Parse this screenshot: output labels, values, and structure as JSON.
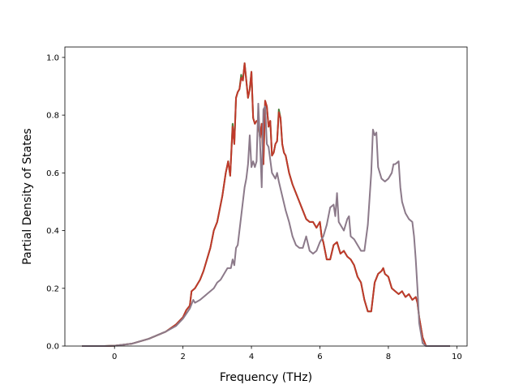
{
  "chart_data": {
    "type": "line",
    "title": "",
    "xlabel": "Frequency (THz)",
    "ylabel": "Partial Density of States",
    "xlim": [
      -1.45,
      10.3
    ],
    "ylim": [
      0.0,
      1.0361
    ],
    "xticks": [
      0,
      2,
      4,
      6,
      8,
      10
    ],
    "yticks": [
      0.0,
      0.2,
      0.4,
      0.6,
      0.8,
      1.0
    ],
    "xtick_labels": [
      "0",
      "2",
      "4",
      "6",
      "8",
      "10"
    ],
    "ytick_labels": [
      "0.0",
      "0.2",
      "0.4",
      "0.6",
      "0.8",
      "1.0"
    ],
    "grid": false,
    "legend": false,
    "series": [
      {
        "color": "#4a7f3a",
        "points": [
          [
            -0.95,
            0
          ],
          [
            -0.3,
            0
          ],
          [
            0,
            0.001
          ],
          [
            0.5,
            0.008
          ],
          [
            1.0,
            0.025
          ],
          [
            1.5,
            0.05
          ],
          [
            1.8,
            0.075
          ],
          [
            2.0,
            0.1
          ],
          [
            2.1,
            0.125
          ],
          [
            2.2,
            0.14
          ],
          [
            2.25,
            0.19
          ],
          [
            2.35,
            0.2
          ],
          [
            2.5,
            0.23
          ],
          [
            2.6,
            0.26
          ],
          [
            2.8,
            0.34
          ],
          [
            2.9,
            0.4
          ],
          [
            3.0,
            0.43
          ],
          [
            3.05,
            0.46
          ],
          [
            3.15,
            0.52
          ],
          [
            3.25,
            0.6
          ],
          [
            3.32,
            0.64
          ],
          [
            3.38,
            0.59
          ],
          [
            3.45,
            0.77
          ],
          [
            3.5,
            0.7
          ],
          [
            3.55,
            0.86
          ],
          [
            3.6,
            0.88
          ],
          [
            3.65,
            0.89
          ],
          [
            3.7,
            0.94
          ],
          [
            3.75,
            0.92
          ],
          [
            3.8,
            0.98
          ],
          [
            3.85,
            0.92
          ],
          [
            3.9,
            0.86
          ],
          [
            3.95,
            0.89
          ],
          [
            4.0,
            0.95
          ],
          [
            4.05,
            0.79
          ],
          [
            4.1,
            0.77
          ],
          [
            4.15,
            0.78
          ],
          [
            4.2,
            0.78
          ],
          [
            4.25,
            0.72
          ],
          [
            4.3,
            0.77
          ],
          [
            4.35,
            0.63
          ],
          [
            4.4,
            0.85
          ],
          [
            4.45,
            0.83
          ],
          [
            4.5,
            0.76
          ],
          [
            4.55,
            0.78
          ],
          [
            4.6,
            0.66
          ],
          [
            4.65,
            0.67
          ],
          [
            4.7,
            0.7
          ],
          [
            4.75,
            0.71
          ],
          [
            4.8,
            0.82
          ],
          [
            4.85,
            0.79
          ],
          [
            4.9,
            0.7
          ],
          [
            4.95,
            0.67
          ],
          [
            5.0,
            0.66
          ],
          [
            5.1,
            0.6
          ],
          [
            5.2,
            0.56
          ],
          [
            5.3,
            0.53
          ],
          [
            5.4,
            0.5
          ],
          [
            5.5,
            0.47
          ],
          [
            5.6,
            0.44
          ],
          [
            5.7,
            0.43
          ],
          [
            5.8,
            0.43
          ],
          [
            5.9,
            0.41
          ],
          [
            6.0,
            0.43
          ],
          [
            6.05,
            0.38
          ],
          [
            6.1,
            0.36
          ],
          [
            6.2,
            0.3
          ],
          [
            6.3,
            0.3
          ],
          [
            6.4,
            0.35
          ],
          [
            6.5,
            0.36
          ],
          [
            6.6,
            0.32
          ],
          [
            6.7,
            0.33
          ],
          [
            6.8,
            0.31
          ],
          [
            6.9,
            0.3
          ],
          [
            7.0,
            0.28
          ],
          [
            7.1,
            0.24
          ],
          [
            7.2,
            0.22
          ],
          [
            7.3,
            0.16
          ],
          [
            7.4,
            0.12
          ],
          [
            7.5,
            0.12
          ],
          [
            7.6,
            0.22
          ],
          [
            7.7,
            0.25
          ],
          [
            7.8,
            0.26
          ],
          [
            7.85,
            0.27
          ],
          [
            7.9,
            0.25
          ],
          [
            8.0,
            0.24
          ],
          [
            8.1,
            0.2
          ],
          [
            8.2,
            0.19
          ],
          [
            8.3,
            0.18
          ],
          [
            8.4,
            0.19
          ],
          [
            8.5,
            0.17
          ],
          [
            8.6,
            0.18
          ],
          [
            8.7,
            0.16
          ],
          [
            8.8,
            0.17
          ],
          [
            8.85,
            0.15
          ],
          [
            8.9,
            0.1
          ],
          [
            9.0,
            0.03
          ],
          [
            9.1,
            0
          ],
          [
            9.8,
            0
          ]
        ]
      },
      {
        "color": "#c0392b",
        "points": [
          [
            -0.95,
            0
          ],
          [
            -0.3,
            0
          ],
          [
            0,
            0.001
          ],
          [
            0.5,
            0.008
          ],
          [
            1.0,
            0.025
          ],
          [
            1.5,
            0.05
          ],
          [
            1.8,
            0.075
          ],
          [
            2.0,
            0.1
          ],
          [
            2.1,
            0.125
          ],
          [
            2.2,
            0.14
          ],
          [
            2.25,
            0.19
          ],
          [
            2.35,
            0.2
          ],
          [
            2.5,
            0.23
          ],
          [
            2.6,
            0.26
          ],
          [
            2.8,
            0.34
          ],
          [
            2.9,
            0.4
          ],
          [
            3.0,
            0.43
          ],
          [
            3.05,
            0.46
          ],
          [
            3.15,
            0.52
          ],
          [
            3.25,
            0.6
          ],
          [
            3.32,
            0.64
          ],
          [
            3.38,
            0.59
          ],
          [
            3.45,
            0.76
          ],
          [
            3.5,
            0.7
          ],
          [
            3.55,
            0.86
          ],
          [
            3.6,
            0.88
          ],
          [
            3.65,
            0.89
          ],
          [
            3.7,
            0.93
          ],
          [
            3.75,
            0.92
          ],
          [
            3.8,
            0.98
          ],
          [
            3.85,
            0.92
          ],
          [
            3.9,
            0.86
          ],
          [
            3.95,
            0.89
          ],
          [
            4.0,
            0.95
          ],
          [
            4.05,
            0.79
          ],
          [
            4.1,
            0.77
          ],
          [
            4.15,
            0.78
          ],
          [
            4.2,
            0.78
          ],
          [
            4.25,
            0.72
          ],
          [
            4.3,
            0.77
          ],
          [
            4.35,
            0.63
          ],
          [
            4.4,
            0.85
          ],
          [
            4.45,
            0.83
          ],
          [
            4.5,
            0.76
          ],
          [
            4.55,
            0.78
          ],
          [
            4.6,
            0.66
          ],
          [
            4.65,
            0.67
          ],
          [
            4.7,
            0.7
          ],
          [
            4.75,
            0.71
          ],
          [
            4.8,
            0.81
          ],
          [
            4.85,
            0.79
          ],
          [
            4.9,
            0.7
          ],
          [
            4.95,
            0.67
          ],
          [
            5.0,
            0.66
          ],
          [
            5.1,
            0.6
          ],
          [
            5.2,
            0.56
          ],
          [
            5.3,
            0.53
          ],
          [
            5.4,
            0.5
          ],
          [
            5.5,
            0.47
          ],
          [
            5.6,
            0.44
          ],
          [
            5.7,
            0.43
          ],
          [
            5.8,
            0.43
          ],
          [
            5.9,
            0.41
          ],
          [
            6.0,
            0.43
          ],
          [
            6.05,
            0.38
          ],
          [
            6.1,
            0.36
          ],
          [
            6.2,
            0.3
          ],
          [
            6.3,
            0.3
          ],
          [
            6.4,
            0.35
          ],
          [
            6.5,
            0.36
          ],
          [
            6.6,
            0.32
          ],
          [
            6.7,
            0.33
          ],
          [
            6.8,
            0.31
          ],
          [
            6.9,
            0.3
          ],
          [
            7.0,
            0.28
          ],
          [
            7.1,
            0.24
          ],
          [
            7.2,
            0.22
          ],
          [
            7.3,
            0.16
          ],
          [
            7.4,
            0.12
          ],
          [
            7.5,
            0.12
          ],
          [
            7.6,
            0.22
          ],
          [
            7.7,
            0.25
          ],
          [
            7.8,
            0.26
          ],
          [
            7.85,
            0.27
          ],
          [
            7.9,
            0.25
          ],
          [
            8.0,
            0.24
          ],
          [
            8.1,
            0.2
          ],
          [
            8.2,
            0.19
          ],
          [
            8.3,
            0.18
          ],
          [
            8.4,
            0.19
          ],
          [
            8.5,
            0.17
          ],
          [
            8.6,
            0.18
          ],
          [
            8.7,
            0.16
          ],
          [
            8.8,
            0.17
          ],
          [
            8.85,
            0.15
          ],
          [
            8.9,
            0.1
          ],
          [
            9.0,
            0.03
          ],
          [
            9.1,
            0
          ],
          [
            9.8,
            0
          ]
        ]
      },
      {
        "color": "#8c7a8a",
        "points": [
          [
            -0.95,
            0
          ],
          [
            -0.3,
            0
          ],
          [
            0,
            0.001
          ],
          [
            0.5,
            0.008
          ],
          [
            1.0,
            0.025
          ],
          [
            1.5,
            0.05
          ],
          [
            1.8,
            0.07
          ],
          [
            2.0,
            0.095
          ],
          [
            2.2,
            0.13
          ],
          [
            2.3,
            0.16
          ],
          [
            2.35,
            0.15
          ],
          [
            2.5,
            0.16
          ],
          [
            2.7,
            0.18
          ],
          [
            2.9,
            0.2
          ],
          [
            3.0,
            0.22
          ],
          [
            3.1,
            0.23
          ],
          [
            3.2,
            0.25
          ],
          [
            3.3,
            0.27
          ],
          [
            3.4,
            0.27
          ],
          [
            3.45,
            0.3
          ],
          [
            3.5,
            0.28
          ],
          [
            3.55,
            0.34
          ],
          [
            3.6,
            0.35
          ],
          [
            3.7,
            0.45
          ],
          [
            3.8,
            0.55
          ],
          [
            3.85,
            0.58
          ],
          [
            3.9,
            0.63
          ],
          [
            3.95,
            0.73
          ],
          [
            4.0,
            0.62
          ],
          [
            4.05,
            0.64
          ],
          [
            4.1,
            0.62
          ],
          [
            4.15,
            0.64
          ],
          [
            4.2,
            0.84
          ],
          [
            4.25,
            0.71
          ],
          [
            4.3,
            0.55
          ],
          [
            4.35,
            0.82
          ],
          [
            4.4,
            0.83
          ],
          [
            4.45,
            0.7
          ],
          [
            4.5,
            0.69
          ],
          [
            4.6,
            0.6
          ],
          [
            4.7,
            0.58
          ],
          [
            4.75,
            0.6
          ],
          [
            4.8,
            0.57
          ],
          [
            4.9,
            0.52
          ],
          [
            5.0,
            0.47
          ],
          [
            5.1,
            0.43
          ],
          [
            5.2,
            0.38
          ],
          [
            5.3,
            0.35
          ],
          [
            5.4,
            0.34
          ],
          [
            5.5,
            0.34
          ],
          [
            5.6,
            0.38
          ],
          [
            5.7,
            0.33
          ],
          [
            5.8,
            0.32
          ],
          [
            5.9,
            0.33
          ],
          [
            6.0,
            0.36
          ],
          [
            6.1,
            0.38
          ],
          [
            6.2,
            0.42
          ],
          [
            6.3,
            0.48
          ],
          [
            6.4,
            0.49
          ],
          [
            6.45,
            0.45
          ],
          [
            6.5,
            0.53
          ],
          [
            6.55,
            0.43
          ],
          [
            6.6,
            0.42
          ],
          [
            6.7,
            0.4
          ],
          [
            6.8,
            0.44
          ],
          [
            6.85,
            0.45
          ],
          [
            6.9,
            0.38
          ],
          [
            7.0,
            0.37
          ],
          [
            7.1,
            0.35
          ],
          [
            7.2,
            0.33
          ],
          [
            7.3,
            0.33
          ],
          [
            7.4,
            0.42
          ],
          [
            7.5,
            0.6
          ],
          [
            7.55,
            0.75
          ],
          [
            7.6,
            0.73
          ],
          [
            7.65,
            0.74
          ],
          [
            7.7,
            0.62
          ],
          [
            7.8,
            0.58
          ],
          [
            7.9,
            0.57
          ],
          [
            8.0,
            0.58
          ],
          [
            8.1,
            0.6
          ],
          [
            8.15,
            0.63
          ],
          [
            8.2,
            0.63
          ],
          [
            8.3,
            0.64
          ],
          [
            8.35,
            0.55
          ],
          [
            8.4,
            0.5
          ],
          [
            8.5,
            0.46
          ],
          [
            8.6,
            0.44
          ],
          [
            8.7,
            0.43
          ],
          [
            8.75,
            0.38
          ],
          [
            8.8,
            0.3
          ],
          [
            8.85,
            0.2
          ],
          [
            8.9,
            0.08
          ],
          [
            9.0,
            0.01
          ],
          [
            9.1,
            0
          ],
          [
            9.8,
            0
          ]
        ]
      }
    ]
  }
}
